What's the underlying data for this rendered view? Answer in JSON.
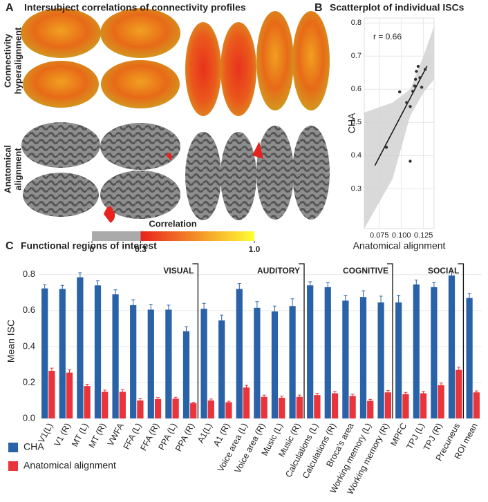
{
  "chart_data": [
    {
      "type": "brain_maps",
      "panel": "A",
      "title": "Intersubject correlations of connectivity profiles",
      "row_labels": [
        [
          "Connectivity",
          "hyperalignment"
        ],
        [
          "Anatomical",
          "alignment"
        ]
      ],
      "colorbar": {
        "title": "Correlation",
        "xlim": [
          0,
          1
        ],
        "xticks": [
          0,
          0.3,
          {
            "value": 1,
            "label": "1.0"
          }
        ],
        "threshold": 0.3,
        "colors": [
          "#aaaaaa",
          "#e8231d",
          "#ffff33"
        ]
      }
    },
    {
      "type": "scatter",
      "panel": "B",
      "title": "Scatterplot of individual ISCs",
      "annotation": "r = 0.66",
      "x_label": "Anatomical alignment",
      "y_label": "CHA",
      "x": [
        0.083,
        0.098,
        0.106,
        0.11,
        0.113,
        0.115,
        0.116,
        0.117,
        0.119,
        0.121,
        0.123,
        0.127,
        0.11
      ],
      "y": [
        0.425,
        0.592,
        0.56,
        0.548,
        0.594,
        0.61,
        0.63,
        0.654,
        0.669,
        0.635,
        0.606,
        0.66,
        0.383
      ],
      "color": "#333333",
      "xlim": [
        0.058,
        0.137
      ],
      "xticks": [
        0.075,
        {
          "value": 0.1,
          "label": "0.100"
        },
        0.125
      ],
      "ylim": [
        0.18,
        0.815
      ],
      "yticks": [
        0.3,
        0.4,
        0.5,
        0.6,
        0.7,
        0.8
      ],
      "grid": true,
      "fit": {
        "x": [
          0.07,
          0.129
        ],
        "y": [
          0.37,
          0.67
        ]
      },
      "ci": {
        "x": [
          0.058,
          0.09,
          0.11,
          0.125,
          0.137
        ],
        "upper": [
          0.53,
          0.56,
          0.6,
          0.7,
          0.79
        ],
        "lower": [
          0.18,
          0.33,
          0.52,
          0.59,
          0.63
        ]
      }
    },
    {
      "type": "bar",
      "panel": "C",
      "title": "Functional regions of interest",
      "y_label": "Mean ISC",
      "categories": [
        "V1(L)",
        "V1 (R)",
        "MT (L)",
        "MT (R)",
        "VWFA",
        "FFA (L)",
        "FFA (R)",
        "PPA (L)",
        "PPA (R)",
        "A1(L)",
        "A1 (R)",
        "Voice area (L)",
        "Voice area (R)",
        "Music (L)",
        "Music (R)",
        "Calculations (L)",
        "Calculations (R)",
        "Broca's area",
        "Working memory (L)",
        "Working memory (R)",
        "MPFC",
        "TPJ (L)",
        "TPJ (R)",
        "Precuneus",
        "ROI mean"
      ],
      "series": [
        {
          "name": "CHA",
          "color": "#2a62a8",
          "values": [
            0.723,
            0.72,
            0.785,
            0.74,
            0.69,
            0.63,
            0.605,
            0.605,
            0.485,
            0.61,
            0.545,
            0.72,
            0.615,
            0.595,
            0.625,
            0.74,
            0.73,
            0.655,
            0.675,
            0.645,
            0.645,
            0.745,
            0.73,
            0.795,
            0.67
          ],
          "errors": [
            0.02,
            0.02,
            0.025,
            0.025,
            0.025,
            0.03,
            0.03,
            0.025,
            0.025,
            0.03,
            0.03,
            0.03,
            0.035,
            0.03,
            0.04,
            0.02,
            0.025,
            0.03,
            0.035,
            0.035,
            0.04,
            0.025,
            0.025,
            0.02,
            0.025
          ]
        },
        {
          "name": "Anatomical alignment",
          "color": "#e8343a",
          "values": [
            0.265,
            0.255,
            0.18,
            0.148,
            0.148,
            0.1,
            0.108,
            0.11,
            0.085,
            0.1,
            0.09,
            0.172,
            0.12,
            0.115,
            0.12,
            0.13,
            0.14,
            0.125,
            0.098,
            0.145,
            0.135,
            0.14,
            0.185,
            0.27,
            0.145
          ],
          "errors": [
            0.015,
            0.015,
            0.01,
            0.01,
            0.012,
            0.01,
            0.008,
            0.008,
            0.005,
            0.008,
            0.006,
            0.012,
            0.01,
            0.01,
            0.01,
            0.01,
            0.01,
            0.01,
            0.008,
            0.01,
            0.01,
            0.01,
            0.012,
            0.015,
            0.008
          ]
        }
      ],
      "groups": [
        {
          "label": "VISUAL",
          "size": 9
        },
        {
          "label": "AUDITORY",
          "size": 6
        },
        {
          "label": "COGNITIVE",
          "size": 5
        },
        {
          "label": "SOCIAL",
          "size": 4
        }
      ],
      "ylim": [
        0,
        0.86
      ],
      "yticks": [
        {
          "value": 0,
          "label": "0.0"
        },
        0.2,
        0.4,
        0.6,
        0.8
      ],
      "grid": true,
      "legend": "bottom-left"
    }
  ]
}
